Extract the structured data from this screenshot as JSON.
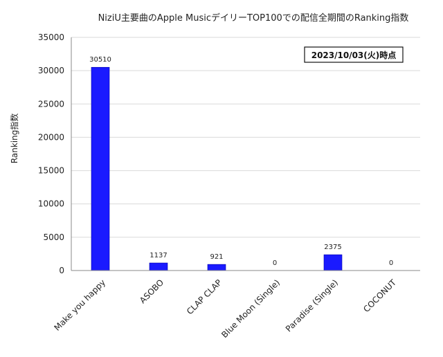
{
  "chart_data": {
    "type": "bar",
    "title": "NiziU主要曲のApple MusicデイリーTOP100での配信全期間のRanking指数",
    "xlabel": "",
    "ylabel": "Ranking指数",
    "ylim": [
      0,
      35000
    ],
    "yticks": [
      0,
      5000,
      10000,
      15000,
      20000,
      25000,
      30000,
      35000
    ],
    "grid": true,
    "categories": [
      "Make you happy",
      "ASOBO",
      "CLAP CLAP",
      "Blue Moon (Single)",
      "Paradise (Single)",
      "COCONUT"
    ],
    "values": [
      30510,
      1137,
      921,
      0,
      2375,
      0
    ],
    "data_labels": [
      "30510",
      "1137",
      "921",
      "0",
      "2375",
      "0"
    ],
    "bar_color": "#1a1aff",
    "annotation": "2023/10/03(火)時点"
  }
}
